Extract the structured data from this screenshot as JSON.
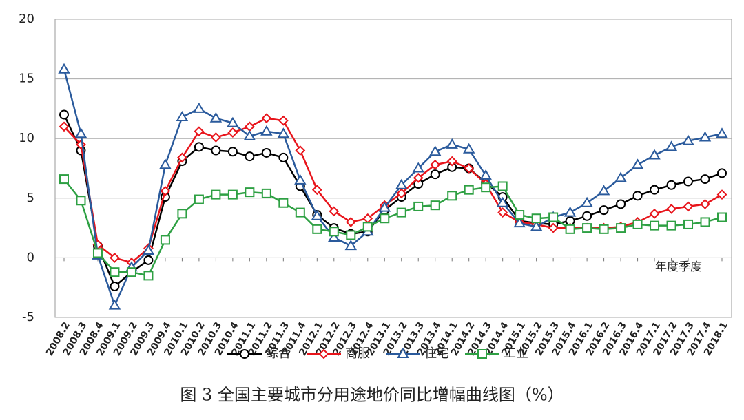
{
  "chart_data": {
    "type": "line",
    "title": "图 3 全国主要城市分用途地价同比增幅曲线图（%）",
    "annotation": "年度季度",
    "categories": [
      "2008.2",
      "2008.3",
      "2008.4",
      "2009.1",
      "2009.2",
      "2009.3",
      "2009.4",
      "2010.1",
      "2010.2",
      "2010.3",
      "2010.4",
      "2011.1",
      "2011.2",
      "2011.3",
      "2011.4",
      "2012.1",
      "2012.2",
      "2012.3",
      "2012.4",
      "2013.1",
      "2013.2",
      "2013.3",
      "2013.4",
      "2014.1",
      "2014.2",
      "2014.3",
      "2014.4",
      "2015.1",
      "2015.2",
      "2015.3",
      "2015.4",
      "2016.1",
      "2016.2",
      "2016.3",
      "2016.4",
      "2017.1",
      "2017.2",
      "2017.3",
      "2017.4",
      "2018.1"
    ],
    "series": [
      {
        "name": "综合",
        "color": "#000000",
        "marker": "circle",
        "values": [
          12,
          9,
          1,
          -2.4,
          -1.2,
          -0.2,
          5.1,
          8.1,
          9.3,
          9.0,
          8.9,
          8.5,
          8.8,
          8.4,
          6.0,
          3.6,
          2.5,
          2.0,
          2.2,
          4.0,
          5.1,
          6.2,
          7.0,
          7.6,
          7.5,
          6.3,
          5.1,
          3.1,
          2.9,
          2.8,
          3.1,
          3.5,
          4.0,
          4.5,
          5.2,
          5.7,
          6.1,
          6.4,
          6.6,
          7.1
        ]
      },
      {
        "name": "商服",
        "color": "#e8141b",
        "marker": "diamond",
        "values": [
          11,
          9.5,
          1.1,
          0,
          -0.4,
          0.8,
          5.6,
          8.4,
          10.6,
          10.1,
          10.5,
          11.0,
          11.7,
          11.5,
          9.0,
          5.7,
          3.9,
          3.0,
          3.3,
          4.4,
          5.4,
          6.7,
          7.8,
          8.1,
          7.5,
          6.2,
          3.8,
          3.0,
          2.8,
          2.5,
          2.5,
          2.5,
          2.5,
          2.6,
          3.0,
          3.7,
          4.1,
          4.3,
          4.5,
          5.3
        ]
      },
      {
        "name": "住宅",
        "color": "#2a5a9c",
        "marker": "triangle",
        "values": [
          15.8,
          10.4,
          0.2,
          -4.0,
          -0.8,
          0.6,
          7.8,
          11.8,
          12.5,
          11.7,
          11.3,
          10.2,
          10.6,
          10.4,
          6.5,
          3.5,
          1.7,
          1.0,
          2.2,
          4.2,
          6.1,
          7.5,
          8.9,
          9.5,
          9.1,
          6.9,
          4.6,
          2.9,
          2.6,
          3.4,
          3.8,
          4.6,
          5.6,
          6.7,
          7.8,
          8.6,
          9.3,
          9.8,
          10.1,
          10.4
        ]
      },
      {
        "name": "工业",
        "color": "#2ea043",
        "marker": "square",
        "values": [
          6.6,
          4.8,
          0.4,
          -1.2,
          -1.2,
          -1.5,
          1.5,
          3.7,
          4.9,
          5.3,
          5.3,
          5.5,
          5.4,
          4.6,
          3.8,
          2.4,
          2.2,
          1.9,
          2.6,
          3.3,
          3.8,
          4.3,
          4.4,
          5.2,
          5.7,
          5.9,
          6.0,
          3.6,
          3.3,
          3.4,
          2.4,
          2.5,
          2.4,
          2.5,
          2.8,
          2.7,
          2.7,
          2.8,
          3.0,
          3.4
        ]
      }
    ],
    "ylim": [
      -5,
      20
    ],
    "yticks": [
      -5,
      0,
      5,
      10,
      15,
      20
    ],
    "grid": true
  }
}
